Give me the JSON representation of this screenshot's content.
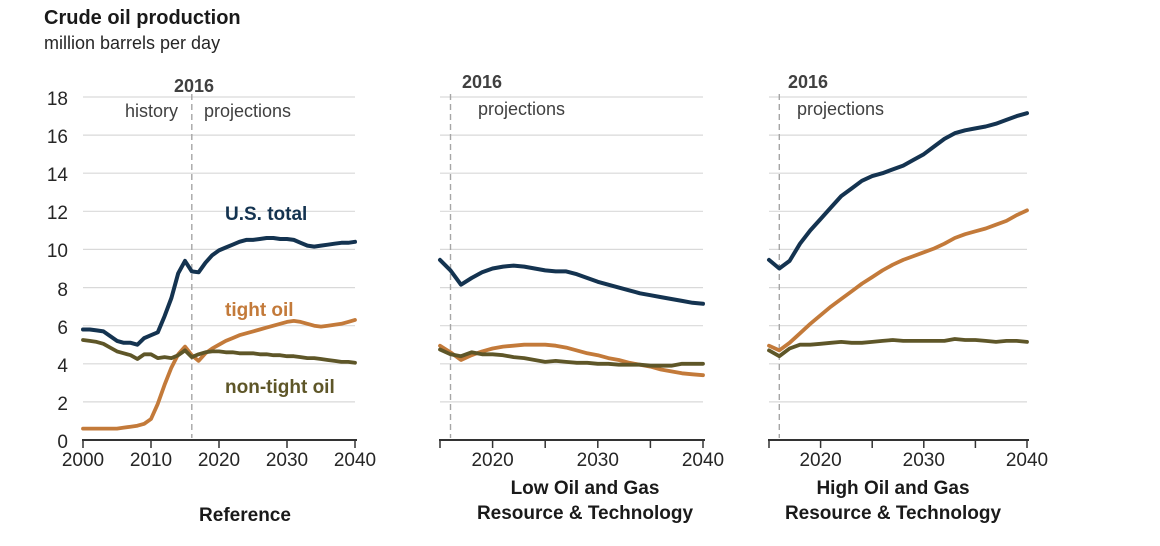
{
  "header": {
    "title": "Crude oil production",
    "subtitle": "million barrels per day"
  },
  "annotations": {
    "year_marker": "2016",
    "history_label": "history",
    "projections_label": "projections"
  },
  "series_labels": {
    "us_total": "U.S. total",
    "tight_oil": "tight oil",
    "non_tight_oil": "non-tight oil"
  },
  "colors": {
    "us_total": "#143350",
    "tight_oil": "#c37a3a",
    "non_tight_oil": "#5e5628",
    "grid": "#d9d9d9",
    "axis": "#333333",
    "dashed_marker": "#a6a6a6",
    "annotation_text": "#404040",
    "caption_text": "#1a1a1a"
  },
  "chart_data": [
    {
      "type": "line",
      "title": "Reference",
      "caption_lines": [
        "Reference"
      ],
      "x_start": 2000,
      "x_end": 2040,
      "marker_year": 2016,
      "ylim": [
        0,
        18
      ],
      "grid_interval": 2,
      "x_ticks": [
        2000,
        2010,
        2020,
        2030,
        2040
      ],
      "x_tick_labels": [
        {
          "year": 2000,
          "label": "2000"
        },
        {
          "year": 2010,
          "label": "2010"
        },
        {
          "year": 2020,
          "label": "2020"
        },
        {
          "year": 2030,
          "label": "2030"
        },
        {
          "year": 2040,
          "label": "2040"
        }
      ],
      "y_ticks": [
        {
          "value": 0,
          "label": "0"
        },
        {
          "value": 2,
          "label": "2"
        },
        {
          "value": 4,
          "label": "4"
        },
        {
          "value": 6,
          "label": "6"
        },
        {
          "value": 8,
          "label": "8"
        },
        {
          "value": 10,
          "label": "10"
        },
        {
          "value": 12,
          "label": "12"
        },
        {
          "value": 14,
          "label": "14"
        },
        {
          "value": 16,
          "label": "16"
        },
        {
          "value": 18,
          "label": "18"
        }
      ],
      "years": [
        2000,
        2001,
        2002,
        2003,
        2004,
        2005,
        2006,
        2007,
        2008,
        2009,
        2010,
        2011,
        2012,
        2013,
        2014,
        2015,
        2016,
        2017,
        2018,
        2019,
        2020,
        2021,
        2022,
        2023,
        2024,
        2025,
        2026,
        2027,
        2028,
        2029,
        2030,
        2031,
        2032,
        2033,
        2034,
        2035,
        2036,
        2037,
        2038,
        2039,
        2040
      ],
      "series": [
        {
          "key": "us_total",
          "name": "U.S. total",
          "values": [
            5.8,
            5.8,
            5.75,
            5.7,
            5.45,
            5.2,
            5.1,
            5.1,
            5.0,
            5.35,
            5.5,
            5.65,
            6.5,
            7.45,
            8.75,
            9.4,
            8.85,
            8.8,
            9.3,
            9.7,
            9.95,
            10.1,
            10.25,
            10.4,
            10.5,
            10.5,
            10.55,
            10.6,
            10.6,
            10.55,
            10.55,
            10.5,
            10.35,
            10.2,
            10.15,
            10.2,
            10.25,
            10.3,
            10.35,
            10.35,
            10.4
          ]
        },
        {
          "key": "tight_oil",
          "name": "tight oil",
          "values": [
            0.6,
            0.6,
            0.6,
            0.6,
            0.6,
            0.6,
            0.65,
            0.7,
            0.75,
            0.85,
            1.1,
            1.9,
            2.9,
            3.8,
            4.5,
            4.9,
            4.45,
            4.15,
            4.55,
            4.8,
            5.0,
            5.2,
            5.35,
            5.5,
            5.6,
            5.7,
            5.8,
            5.9,
            6.0,
            6.1,
            6.2,
            6.25,
            6.2,
            6.1,
            6.0,
            5.95,
            6.0,
            6.05,
            6.1,
            6.2,
            6.3
          ]
        },
        {
          "key": "non_tight_oil",
          "name": "non-tight oil",
          "values": [
            5.25,
            5.2,
            5.15,
            5.05,
            4.85,
            4.65,
            4.55,
            4.45,
            4.25,
            4.5,
            4.5,
            4.3,
            4.35,
            4.3,
            4.45,
            4.7,
            4.35,
            4.5,
            4.6,
            4.65,
            4.65,
            4.6,
            4.6,
            4.55,
            4.55,
            4.55,
            4.5,
            4.5,
            4.45,
            4.45,
            4.4,
            4.4,
            4.35,
            4.3,
            4.3,
            4.25,
            4.2,
            4.15,
            4.1,
            4.1,
            4.05
          ]
        }
      ]
    },
    {
      "type": "line",
      "title": "Low Oil and Gas Resource & Technology",
      "caption_lines": [
        "Low Oil and Gas",
        "Resource & Technology"
      ],
      "x_start": 2015,
      "x_end": 2040,
      "marker_year": 2016,
      "ylim": [
        0,
        18
      ],
      "grid_interval": 2,
      "x_ticks": [
        2015,
        2020,
        2025,
        2030,
        2035,
        2040
      ],
      "x_tick_labels": [
        {
          "year": 2020,
          "label": "2020"
        },
        {
          "year": 2030,
          "label": "2030"
        },
        {
          "year": 2040,
          "label": "2040"
        }
      ],
      "years": [
        2015,
        2016,
        2017,
        2018,
        2019,
        2020,
        2021,
        2022,
        2023,
        2024,
        2025,
        2026,
        2027,
        2028,
        2029,
        2030,
        2031,
        2032,
        2033,
        2034,
        2035,
        2036,
        2037,
        2038,
        2039,
        2040
      ],
      "series": [
        {
          "key": "us_total",
          "name": "U.S. total",
          "values": [
            9.45,
            8.9,
            8.15,
            8.5,
            8.8,
            9.0,
            9.1,
            9.15,
            9.1,
            9.0,
            8.9,
            8.85,
            8.85,
            8.7,
            8.5,
            8.3,
            8.15,
            8.0,
            7.85,
            7.7,
            7.6,
            7.5,
            7.4,
            7.3,
            7.2,
            7.15
          ]
        },
        {
          "key": "tight_oil",
          "name": "tight oil",
          "values": [
            4.95,
            4.6,
            4.2,
            4.45,
            4.65,
            4.8,
            4.9,
            4.95,
            5.0,
            5.0,
            5.0,
            4.95,
            4.85,
            4.7,
            4.55,
            4.45,
            4.3,
            4.2,
            4.05,
            3.95,
            3.85,
            3.7,
            3.6,
            3.5,
            3.45,
            3.4
          ]
        },
        {
          "key": "non_tight_oil",
          "name": "non-tight oil",
          "values": [
            4.75,
            4.5,
            4.4,
            4.6,
            4.5,
            4.5,
            4.45,
            4.35,
            4.3,
            4.2,
            4.1,
            4.15,
            4.1,
            4.05,
            4.05,
            4.0,
            4.0,
            3.95,
            3.95,
            3.95,
            3.9,
            3.9,
            3.9,
            4.0,
            4.0,
            4.0
          ]
        }
      ]
    },
    {
      "type": "line",
      "title": "High Oil and Gas Resource & Technology",
      "caption_lines": [
        "High Oil and Gas",
        "Resource & Technology"
      ],
      "x_start": 2015,
      "x_end": 2040,
      "marker_year": 2016,
      "ylim": [
        0,
        18
      ],
      "grid_interval": 2,
      "x_ticks": [
        2015,
        2020,
        2025,
        2030,
        2035,
        2040
      ],
      "x_tick_labels": [
        {
          "year": 2020,
          "label": "2020"
        },
        {
          "year": 2030,
          "label": "2030"
        },
        {
          "year": 2040,
          "label": "2040"
        }
      ],
      "years": [
        2015,
        2016,
        2017,
        2018,
        2019,
        2020,
        2021,
        2022,
        2023,
        2024,
        2025,
        2026,
        2027,
        2028,
        2029,
        2030,
        2031,
        2032,
        2033,
        2034,
        2035,
        2036,
        2037,
        2038,
        2039,
        2040
      ],
      "series": [
        {
          "key": "us_total",
          "name": "U.S. total",
          "values": [
            9.45,
            9.0,
            9.4,
            10.3,
            11.0,
            11.6,
            12.2,
            12.8,
            13.2,
            13.6,
            13.85,
            14.0,
            14.2,
            14.4,
            14.7,
            15.0,
            15.4,
            15.8,
            16.1,
            16.25,
            16.35,
            16.45,
            16.6,
            16.8,
            17.0,
            17.15
          ]
        },
        {
          "key": "tight_oil",
          "name": "tight oil",
          "values": [
            4.95,
            4.7,
            5.1,
            5.6,
            6.1,
            6.55,
            7.0,
            7.4,
            7.8,
            8.2,
            8.55,
            8.9,
            9.2,
            9.45,
            9.65,
            9.85,
            10.05,
            10.3,
            10.6,
            10.8,
            10.95,
            11.1,
            11.3,
            11.5,
            11.8,
            12.05
          ]
        },
        {
          "key": "non_tight_oil",
          "name": "non-tight oil",
          "values": [
            4.7,
            4.4,
            4.8,
            5.0,
            5.0,
            5.05,
            5.1,
            5.15,
            5.1,
            5.1,
            5.15,
            5.2,
            5.25,
            5.2,
            5.2,
            5.2,
            5.2,
            5.2,
            5.3,
            5.25,
            5.25,
            5.2,
            5.15,
            5.2,
            5.2,
            5.15
          ]
        }
      ]
    }
  ]
}
